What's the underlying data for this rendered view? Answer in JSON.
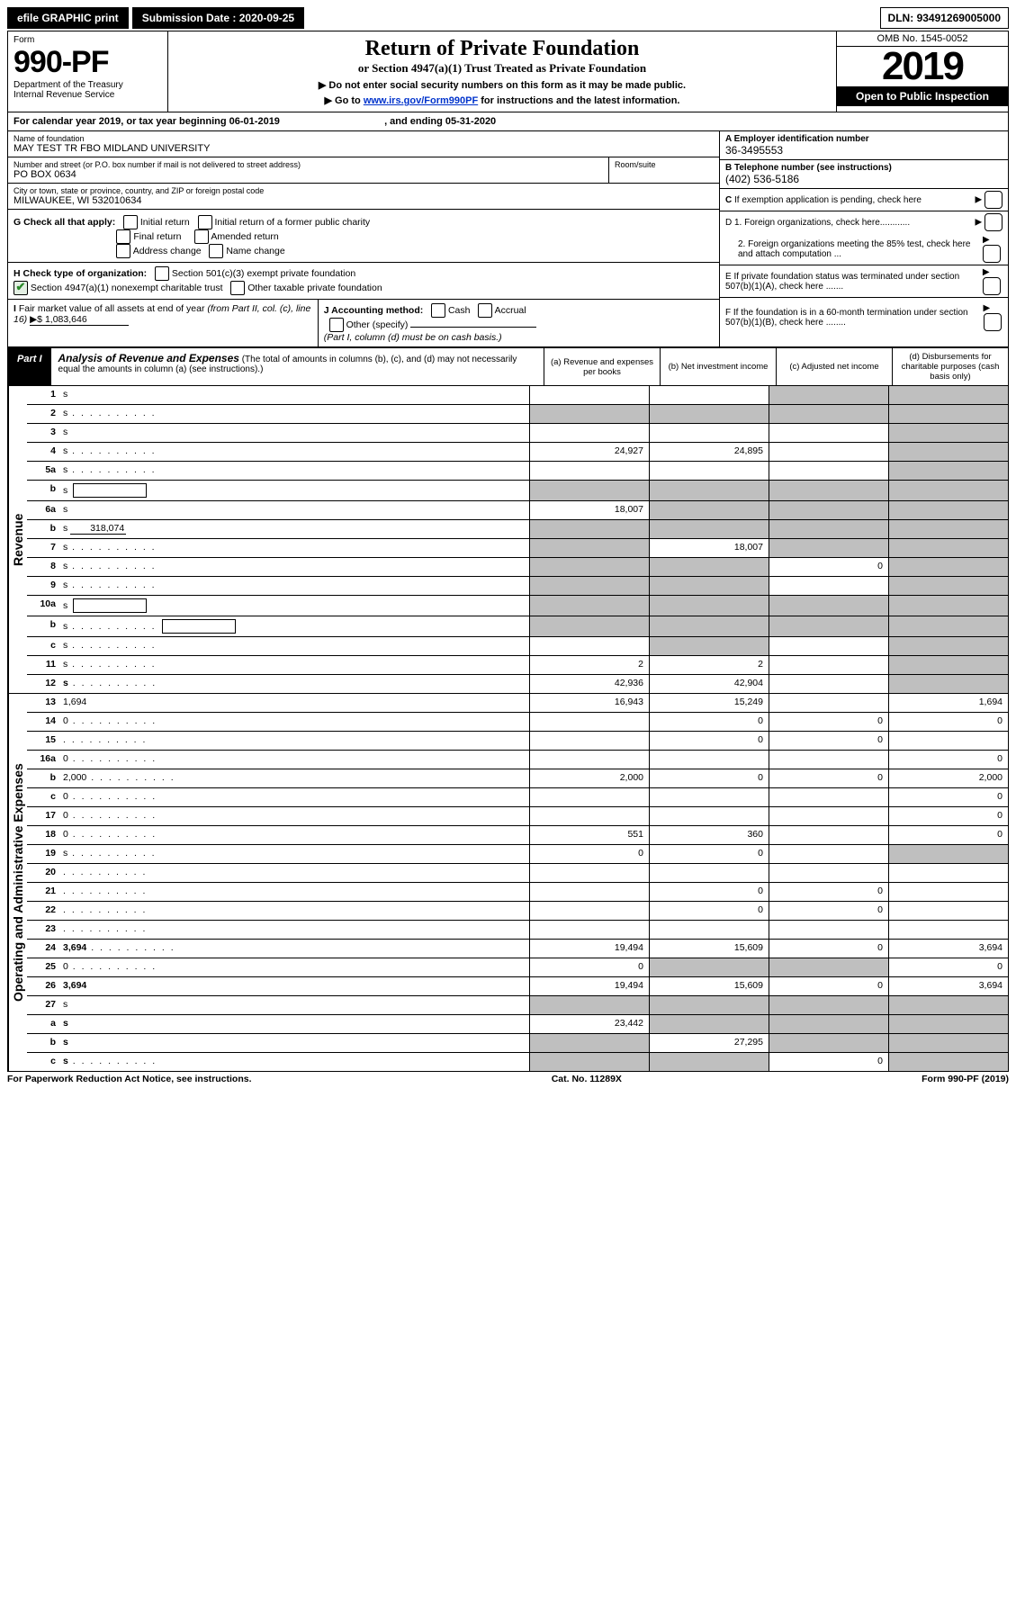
{
  "topbar": {
    "efile": "efile GRAPHIC print",
    "submission_label": "Submission Date :",
    "submission_date": "2020-09-25",
    "dln_label": "DLN:",
    "dln": "93491269005000"
  },
  "header": {
    "form_word": "Form",
    "form_no": "990-PF",
    "dept1": "Department of the Treasury",
    "dept2": "Internal Revenue Service",
    "title": "Return of Private Foundation",
    "subtitle": "or Section 4947(a)(1) Trust Treated as Private Foundation",
    "hint1": "▶ Do not enter social security numbers on this form as it may be made public.",
    "hint2_pre": "▶ Go to ",
    "hint2_link": "www.irs.gov/Form990PF",
    "hint2_post": " for instructions and the latest information.",
    "omb": "OMB No. 1545-0052",
    "year": "2019",
    "open": "Open to Public Inspection"
  },
  "cal": {
    "text_a": "For calendar year 2019, or tax year beginning ",
    "begin": "06-01-2019",
    "text_b": ", and ending ",
    "end": "05-31-2020"
  },
  "info": {
    "name_label": "Name of foundation",
    "name": "MAY TEST TR FBO MIDLAND UNIVERSITY",
    "addr_label": "Number and street (or P.O. box number if mail is not delivered to street address)",
    "addr": "PO BOX 0634",
    "room_label": "Room/suite",
    "city_label": "City or town, state or province, country, and ZIP or foreign postal code",
    "city": "MILWAUKEE, WI  532010634",
    "ein_label": "A Employer identification number",
    "ein": "36-3495553",
    "phone_label": "B Telephone number (see instructions)",
    "phone": "(402) 536-5186",
    "c_label": "C If exemption application is pending, check here",
    "d1": "D 1. Foreign organizations, check here............",
    "d2": "2. Foreign organizations meeting the 85% test, check here and attach computation ...",
    "e_label": "E  If private foundation status was terminated under section 507(b)(1)(A), check here .......",
    "f_label": "F  If the foundation is in a 60-month termination under section 507(b)(1)(B), check here ........"
  },
  "g": {
    "label": "G Check all that apply:",
    "opts": [
      "Initial return",
      "Initial return of a former public charity",
      "Final return",
      "Amended return",
      "Address change",
      "Name change"
    ]
  },
  "h": {
    "label": "H Check type of organization:",
    "opt1": "Section 501(c)(3) exempt private foundation",
    "opt2": "Section 4947(a)(1) nonexempt charitable trust",
    "opt3": "Other taxable private foundation"
  },
  "i": {
    "label": "I Fair market value of all assets at end of year (from Part II, col. (c), line 16)",
    "val": "▶$  1,083,646"
  },
  "j": {
    "label": "J Accounting method:",
    "cash": "Cash",
    "accrual": "Accrual",
    "other": "Other (specify)",
    "note": "(Part I, column (d) must be on cash basis.)"
  },
  "part1": {
    "label": "Part I",
    "title": "Analysis of Revenue and Expenses",
    "sub": "(The total of amounts in columns (b), (c), and (d) may not necessarily equal the amounts in column (a) (see instructions).)",
    "col_a": "(a)   Revenue and expenses per books",
    "col_b": "(b)  Net investment income",
    "col_c": "(c)  Adjusted net income",
    "col_d": "(d)  Disbursements for charitable purposes (cash basis only)"
  },
  "sections": {
    "revenue": "Revenue",
    "opex": "Operating and Administrative Expenses"
  },
  "rows": [
    {
      "n": "1",
      "d": "s",
      "a": "",
      "b": "",
      "c": "s"
    },
    {
      "n": "2",
      "d": "s",
      "dots": 1,
      "a": "s",
      "b": "s",
      "c": "s",
      "bold_not": true
    },
    {
      "n": "3",
      "d": "s",
      "a": "",
      "b": "",
      "c": ""
    },
    {
      "n": "4",
      "d": "s",
      "dots": 1,
      "a": "24,927",
      "b": "24,895",
      "c": ""
    },
    {
      "n": "5a",
      "d": "s",
      "dots": 1,
      "a": "",
      "b": "",
      "c": ""
    },
    {
      "n": "b",
      "d": "s",
      "box": 1,
      "a": "s",
      "b": "s",
      "c": "s"
    },
    {
      "n": "6a",
      "d": "s",
      "a": "18,007",
      "b": "s",
      "c": "s"
    },
    {
      "n": "b",
      "d": "s",
      "inline": "318,074",
      "a": "s",
      "b": "s",
      "c": "s"
    },
    {
      "n": "7",
      "d": "s",
      "dots": 1,
      "a": "s",
      "b": "18,007",
      "c": "s"
    },
    {
      "n": "8",
      "d": "s",
      "dots": 1,
      "a": "s",
      "b": "s",
      "c": "0"
    },
    {
      "n": "9",
      "d": "s",
      "dots": 1,
      "a": "s",
      "b": "s",
      "c": ""
    },
    {
      "n": "10a",
      "d": "s",
      "box": 1,
      "a": "s",
      "b": "s",
      "c": "s"
    },
    {
      "n": "b",
      "d": "s",
      "dots": 1,
      "box": 1,
      "a": "s",
      "b": "s",
      "c": "s"
    },
    {
      "n": "c",
      "d": "s",
      "dots": 1,
      "a": "",
      "b": "s",
      "c": ""
    },
    {
      "n": "11",
      "d": "s",
      "dots": 1,
      "a": "2",
      "b": "2",
      "c": ""
    },
    {
      "n": "12",
      "d": "s",
      "dots": 1,
      "a": "42,936",
      "b": "42,904",
      "c": "",
      "bold": true
    }
  ],
  "oprows": [
    {
      "n": "13",
      "d": "1,694",
      "a": "16,943",
      "b": "15,249",
      "c": ""
    },
    {
      "n": "14",
      "d": "0",
      "dots": 1,
      "a": "",
      "b": "0",
      "c": "0"
    },
    {
      "n": "15",
      "d": "",
      "dots": 1,
      "a": "",
      "b": "0",
      "c": "0"
    },
    {
      "n": "16a",
      "d": "0",
      "dots": 1,
      "a": "",
      "b": "",
      "c": ""
    },
    {
      "n": "b",
      "d": "2,000",
      "dots": 1,
      "a": "2,000",
      "b": "0",
      "c": "0"
    },
    {
      "n": "c",
      "d": "0",
      "dots": 1,
      "a": "",
      "b": "",
      "c": ""
    },
    {
      "n": "17",
      "d": "0",
      "dots": 1,
      "a": "",
      "b": "",
      "c": ""
    },
    {
      "n": "18",
      "d": "0",
      "dots": 1,
      "a": "551",
      "b": "360",
      "c": ""
    },
    {
      "n": "19",
      "d": "s",
      "dots": 1,
      "a": "0",
      "b": "0",
      "c": ""
    },
    {
      "n": "20",
      "d": "",
      "dots": 1,
      "a": "",
      "b": "",
      "c": ""
    },
    {
      "n": "21",
      "d": "",
      "dots": 1,
      "a": "",
      "b": "0",
      "c": "0"
    },
    {
      "n": "22",
      "d": "",
      "dots": 1,
      "a": "",
      "b": "0",
      "c": "0"
    },
    {
      "n": "23",
      "d": "",
      "dots": 1,
      "a": "",
      "b": "",
      "c": ""
    },
    {
      "n": "24",
      "d": "3,694",
      "dots": 1,
      "a": "19,494",
      "b": "15,609",
      "c": "0",
      "bold": true
    },
    {
      "n": "25",
      "d": "0",
      "dots": 1,
      "a": "0",
      "b": "s",
      "c": "s"
    },
    {
      "n": "26",
      "d": "3,694",
      "a": "19,494",
      "b": "15,609",
      "c": "0",
      "bold": true
    },
    {
      "n": "27",
      "d": "s",
      "a": "s",
      "b": "s",
      "c": "s"
    },
    {
      "n": "a",
      "d": "s",
      "a": "23,442",
      "b": "s",
      "c": "s",
      "bold": true
    },
    {
      "n": "b",
      "d": "s",
      "a": "s",
      "b": "27,295",
      "c": "s",
      "bold": true
    },
    {
      "n": "c",
      "d": "s",
      "dots": 1,
      "a": "s",
      "b": "s",
      "c": "0",
      "bold": true
    }
  ],
  "footer": {
    "left": "For Paperwork Reduction Act Notice, see instructions.",
    "mid": "Cat. No. 11289X",
    "right": "Form 990-PF (2019)"
  }
}
